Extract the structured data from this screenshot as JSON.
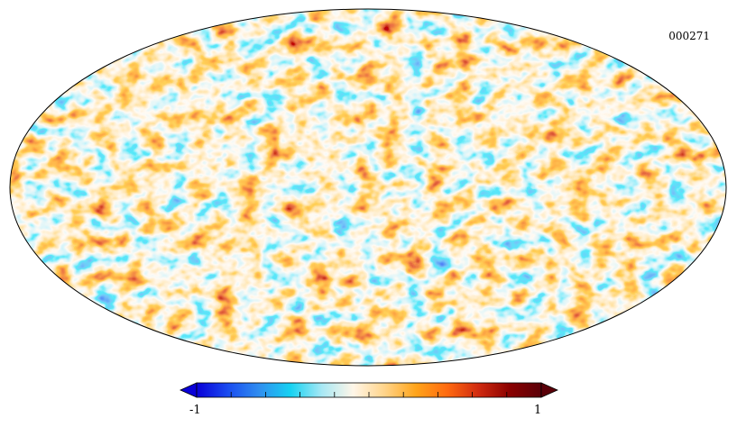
{
  "map": {
    "projection": "mollweide",
    "label": "000271",
    "field_description_id": "full-sky-temperature-anisotropy"
  },
  "colorbar": {
    "min_label": "-1",
    "max_label": "1",
    "min": -1,
    "max": 1,
    "extend": "both",
    "colors": [
      "#0a00d8",
      "#1a4cf0",
      "#2f8ef0",
      "#16d2f2",
      "#a8e8f4",
      "#fff6e8",
      "#ffd48a",
      "#ffa41a",
      "#ff6a10",
      "#d02a10",
      "#8a0000",
      "#5a0008"
    ]
  },
  "colors": {
    "outline": "#000000",
    "background": "#ffffff"
  }
}
